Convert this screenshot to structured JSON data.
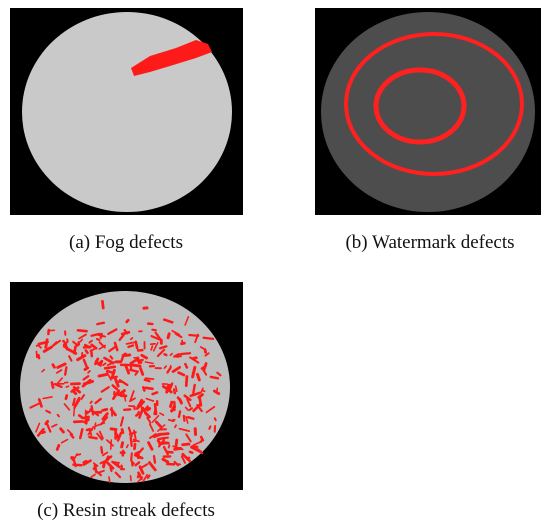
{
  "figure": {
    "panels": [
      {
        "caption": "(a) Fog defects"
      },
      {
        "caption": "(b) Watermark defects"
      },
      {
        "caption": "(c) Resin streak defects"
      }
    ]
  }
}
